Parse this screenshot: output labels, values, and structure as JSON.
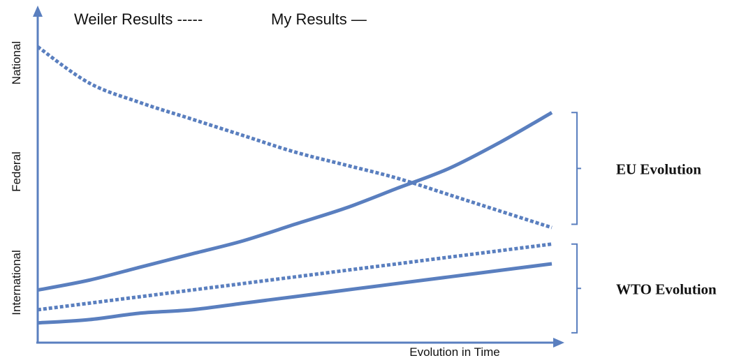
{
  "chart_data": {
    "type": "line",
    "legend": {
      "dashed_label": "Weiler Results -----",
      "solid_label": "My Results —"
    },
    "xlabel": "Evolution in Time",
    "y_tick_labels": [
      "National",
      "Federal",
      "International"
    ],
    "x": [
      0,
      0.1,
      0.2,
      0.3,
      0.4,
      0.5,
      0.6,
      0.7,
      0.8,
      0.9,
      1.0
    ],
    "series": [
      {
        "style": "dashed",
        "group": "EU Evolution",
        "values": [
          0.9,
          0.79,
          0.73,
          0.68,
          0.63,
          0.58,
          0.54,
          0.5,
          0.45,
          0.4,
          0.35
        ]
      },
      {
        "style": "solid",
        "group": "EU Evolution",
        "values": [
          0.16,
          0.19,
          0.23,
          0.27,
          0.31,
          0.36,
          0.41,
          0.47,
          0.53,
          0.61,
          0.7
        ]
      },
      {
        "style": "dashed",
        "group": "WTO Evolution",
        "values": [
          0.1,
          0.12,
          0.14,
          0.16,
          0.18,
          0.2,
          0.22,
          0.24,
          0.26,
          0.28,
          0.3
        ]
      },
      {
        "style": "solid",
        "group": "WTO Evolution",
        "values": [
          0.06,
          0.07,
          0.09,
          0.1,
          0.12,
          0.14,
          0.16,
          0.18,
          0.2,
          0.22,
          0.24
        ]
      }
    ],
    "brackets": [
      {
        "label": "EU Evolution",
        "range": [
          0.36,
          0.7
        ]
      },
      {
        "label": "WTO Evolution",
        "range": [
          0.03,
          0.3
        ]
      }
    ],
    "ylim": [
      0,
      1
    ],
    "xlim": [
      0,
      1
    ],
    "colors": {
      "line": "#5a7fbf",
      "axis": "#5a7fbf",
      "bracket": "#5a7fbf"
    }
  }
}
